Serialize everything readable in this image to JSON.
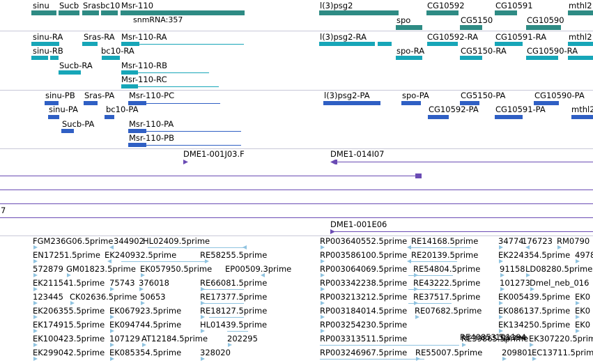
{
  "colors": {
    "gene": "#2e8b84",
    "mrna": "#17a6b8",
    "protein": "#2f5fc4",
    "clone": "#6a4bb4",
    "est": "#8fc3e0",
    "separator": "#c8c8d8"
  },
  "edge_label": "7",
  "tracks": {
    "genes": [
      {
        "label": "sinu"
      },
      {
        "label": "Sucb"
      },
      {
        "label": "Srasbc10"
      },
      {
        "label": "Msr-110"
      },
      {
        "label": "snmRNA:357"
      },
      {
        "label": "l(3)psg2"
      },
      {
        "label": "spo"
      },
      {
        "label": "CG10592"
      },
      {
        "label": "CG5150"
      },
      {
        "label": "CG10591"
      },
      {
        "label": "CG10590"
      },
      {
        "label": "mthl2"
      }
    ],
    "transcripts": [
      {
        "label": "sinu-RA"
      },
      {
        "label": "Sras-RA"
      },
      {
        "label": "Msr-110-RA"
      },
      {
        "label": "sinu-RB"
      },
      {
        "label": "bc10-RA"
      },
      {
        "label": "Sucb-RA"
      },
      {
        "label": "Msr-110-RB"
      },
      {
        "label": "Msr-110-RC"
      },
      {
        "label": "l(3)psg2-RA"
      },
      {
        "label": "spo-RA"
      },
      {
        "label": "CG10592-RA"
      },
      {
        "label": "CG5150-RA"
      },
      {
        "label": "CG10591-RA"
      },
      {
        "label": "CG10590-RA"
      },
      {
        "label": "mthl2"
      }
    ],
    "proteins": [
      {
        "label": "sinu-PB"
      },
      {
        "label": "Sras-PA"
      },
      {
        "label": "Msr-110-PC"
      },
      {
        "label": "sinu-PA"
      },
      {
        "label": "bc10-PA"
      },
      {
        "label": "Sucb-PA"
      },
      {
        "label": "Msr-110-PA"
      },
      {
        "label": "Msr-110-PB"
      },
      {
        "label": "l(3)psg2-PA"
      },
      {
        "label": "spo-PA"
      },
      {
        "label": "CG10592-PA"
      },
      {
        "label": "CG5150-PA"
      },
      {
        "label": "CG10591-PA"
      },
      {
        "label": "CG10590-PA"
      },
      {
        "label": "mthl2"
      }
    ],
    "clones": [
      {
        "label": "DME1-001J03.F"
      },
      {
        "label": "DME1-014I07"
      },
      {
        "label": "DME1-001E06"
      }
    ],
    "ests": [
      {
        "label": "FGM236G06.5prime"
      },
      {
        "label": "344902"
      },
      {
        "label": "HL02409.5prime"
      },
      {
        "label": "EN17251.5prime"
      },
      {
        "label": "EK240932.5prime"
      },
      {
        "label": "RE58255.5prime"
      },
      {
        "label": "572879"
      },
      {
        "label": "GM01823.5prime"
      },
      {
        "label": "EK057950.5prime"
      },
      {
        "label": "EP00509.3prime"
      },
      {
        "label": "EK211541.5prime"
      },
      {
        "label": "75743"
      },
      {
        "label": "376018"
      },
      {
        "label": "RE66081.5prime"
      },
      {
        "label": "123445"
      },
      {
        "label": "CK02636.5prime"
      },
      {
        "label": "50653"
      },
      {
        "label": "RE17377.5prime"
      },
      {
        "label": "EK206355.5prime"
      },
      {
        "label": "EK067923.5prime"
      },
      {
        "label": "RE18127.5prime"
      },
      {
        "label": "EK174915.5prime"
      },
      {
        "label": "EK094744.5prime"
      },
      {
        "label": "HL01439.5prime"
      },
      {
        "label": "EK100423.5prime"
      },
      {
        "label": "107129"
      },
      {
        "label": "AT12184.5prime"
      },
      {
        "label": "202295"
      },
      {
        "label": "EK299042.5prime"
      },
      {
        "label": "EK085354.5prime"
      },
      {
        "label": "328020"
      },
      {
        "label": "RP003640552.5prime"
      },
      {
        "label": "RE14168.5prime"
      },
      {
        "label": "34774"
      },
      {
        "label": "176723"
      },
      {
        "label": "RM0790"
      },
      {
        "label": "RP003586100.5prime"
      },
      {
        "label": "RE20139.5prime"
      },
      {
        "label": "EK224354.5prime"
      },
      {
        "label": "4978"
      },
      {
        "label": "RP003064069.5prime"
      },
      {
        "label": "RE54804.5prime"
      },
      {
        "label": "91158"
      },
      {
        "label": "LD08280.5prime"
      },
      {
        "label": "RP003342238.5prime"
      },
      {
        "label": "RE43222.5prime"
      },
      {
        "label": "101273"
      },
      {
        "label": "Dmel_neb_016"
      },
      {
        "label": "RP003213212.5prime"
      },
      {
        "label": "RE37517.5prime"
      },
      {
        "label": "EK005439.5prime"
      },
      {
        "label": "EK0"
      },
      {
        "label": "RP003184014.5prime"
      },
      {
        "label": "RE07682.5prime"
      },
      {
        "label": "EK086137.5prime"
      },
      {
        "label": "EK0"
      },
      {
        "label": "RP003254230.5prime"
      },
      {
        "label": "EK134250.5prime"
      },
      {
        "label": "EK0"
      },
      {
        "label": "RE40853.5prime"
      },
      {
        "label": "101194"
      },
      {
        "label": "RP003313511.5prime"
      },
      {
        "label": "RE39865.5prime"
      },
      {
        "label": "EK307220.5prime"
      },
      {
        "label": "RP003246967.5prime"
      },
      {
        "label": "RE55007.5prime"
      },
      {
        "label": "209801"
      },
      {
        "label": "EC13711.5prime"
      }
    ]
  }
}
